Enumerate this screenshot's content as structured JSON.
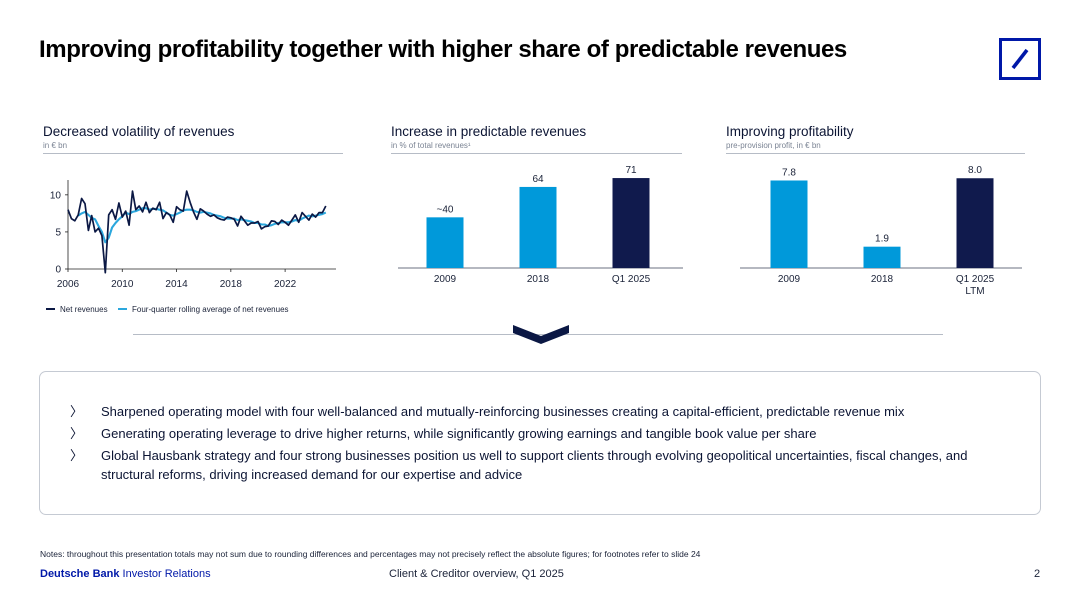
{
  "title": "Improving profitability together with higher share of predictable revenues",
  "colors": {
    "brand": "#0018a8",
    "navy": "#0b1844",
    "light_blue": "#0099da",
    "bar_dark": "#101a4d"
  },
  "panels": {
    "volatility": {
      "title": "Decreased volatility of revenues",
      "subtitle": "in € bn"
    },
    "predictable": {
      "title": "Increase in predictable revenues",
      "subtitle": "in % of total revenues¹"
    },
    "profitability": {
      "title": "Improving profitability",
      "subtitle": "pre-provision profit, in € bn"
    }
  },
  "chart_data": [
    {
      "type": "line",
      "title": "Decreased volatility of revenues",
      "ylabel": "in € bn",
      "ylim": [
        0,
        12
      ],
      "yticks": [
        "0",
        "5",
        "10"
      ],
      "xticks": [
        "2006",
        "2010",
        "2014",
        "2018",
        "2022"
      ],
      "xrange": [
        2006,
        2025.75
      ],
      "series": [
        {
          "name": "Net revenues",
          "color": "#0b1844",
          "x": [
            2006.0,
            2006.25,
            2006.5,
            2006.75,
            2007.0,
            2007.25,
            2007.5,
            2007.75,
            2008.0,
            2008.25,
            2008.5,
            2008.75,
            2009.0,
            2009.25,
            2009.5,
            2009.75,
            2010.0,
            2010.25,
            2010.5,
            2010.75,
            2011.0,
            2011.25,
            2011.5,
            2011.75,
            2012.0,
            2012.25,
            2012.5,
            2012.75,
            2013.0,
            2013.25,
            2013.5,
            2013.75,
            2014.0,
            2014.25,
            2014.5,
            2014.75,
            2015.0,
            2015.25,
            2015.5,
            2015.75,
            2016.0,
            2016.25,
            2016.5,
            2016.75,
            2017.0,
            2017.25,
            2017.5,
            2017.75,
            2018.0,
            2018.25,
            2018.5,
            2018.75,
            2019.0,
            2019.25,
            2019.5,
            2019.75,
            2020.0,
            2020.25,
            2020.5,
            2020.75,
            2021.0,
            2021.25,
            2021.5,
            2021.75,
            2022.0,
            2022.25,
            2022.5,
            2022.75,
            2023.0,
            2023.25,
            2023.5,
            2023.75,
            2024.0,
            2024.25,
            2024.5,
            2024.75,
            2025.0
          ],
          "values": [
            8.0,
            6.8,
            6.5,
            7.3,
            9.5,
            8.8,
            5.2,
            7.2,
            5.0,
            5.5,
            4.5,
            -0.5,
            7.3,
            8.0,
            6.7,
            8.9,
            7.0,
            7.8,
            5.9,
            10.5,
            8.0,
            8.5,
            7.7,
            9.0,
            7.6,
            8.2,
            8.0,
            9.0,
            6.8,
            7.6,
            7.3,
            6.3,
            8.4,
            8.0,
            7.8,
            10.5,
            9.0,
            7.7,
            6.7,
            8.1,
            7.8,
            7.4,
            7.1,
            7.3,
            6.9,
            6.7,
            6.6,
            7.0,
            6.9,
            6.7,
            5.8,
            7.1,
            6.5,
            5.9,
            6.2,
            6.2,
            6.4,
            5.4,
            5.7,
            5.8,
            6.5,
            6.4,
            6.0,
            6.6,
            6.3,
            5.9,
            6.6,
            7.3,
            6.3,
            7.6,
            7.1,
            6.6,
            7.4,
            7.0,
            7.6,
            7.6,
            8.5
          ]
        },
        {
          "name": "Four-quarter rolling average of net revenues",
          "color": "#2ba7dd",
          "x": [
            2006.75,
            2007.0,
            2007.25,
            2007.5,
            2007.75,
            2008.0,
            2008.25,
            2008.5,
            2008.75,
            2009.0,
            2009.25,
            2009.5,
            2009.75,
            2010.0,
            2010.25,
            2010.5,
            2010.75,
            2011.0,
            2011.25,
            2011.5,
            2011.75,
            2012.0,
            2012.25,
            2012.5,
            2012.75,
            2013.0,
            2013.25,
            2013.5,
            2013.75,
            2014.0,
            2014.25,
            2014.5,
            2014.75,
            2015.0,
            2015.25,
            2015.5,
            2015.75,
            2016.0,
            2016.25,
            2016.5,
            2016.75,
            2017.0,
            2017.25,
            2017.5,
            2017.75,
            2018.0,
            2018.25,
            2018.5,
            2018.75,
            2019.0,
            2019.25,
            2019.5,
            2019.75,
            2020.0,
            2020.25,
            2020.5,
            2020.75,
            2021.0,
            2021.25,
            2021.5,
            2021.75,
            2022.0,
            2022.25,
            2022.5,
            2022.75,
            2023.0,
            2023.25,
            2023.5,
            2023.75,
            2024.0,
            2024.25,
            2024.5,
            2024.75,
            2025.0
          ],
          "values": [
            7.2,
            7.5,
            7.7,
            7.3,
            6.9,
            6.7,
            5.8,
            5.0,
            3.6,
            4.2,
            5.6,
            6.2,
            6.7,
            7.1,
            7.6,
            7.4,
            7.7,
            7.8,
            8.0,
            8.2,
            8.2,
            8.0,
            8.1,
            8.1,
            8.0,
            7.9,
            7.6,
            7.3,
            7.2,
            7.4,
            7.6,
            7.9,
            8.0,
            8.0,
            7.9,
            7.7,
            7.6,
            7.7,
            7.6,
            7.5,
            7.3,
            7.2,
            7.1,
            6.9,
            6.8,
            6.8,
            6.8,
            6.6,
            6.7,
            6.6,
            6.5,
            6.4,
            6.2,
            6.2,
            6.0,
            6.0,
            5.8,
            5.9,
            6.1,
            6.2,
            6.3,
            6.3,
            6.3,
            6.4,
            6.6,
            6.5,
            6.8,
            7.0,
            7.2,
            7.1,
            7.2,
            7.3,
            7.4,
            7.6
          ]
        }
      ]
    },
    {
      "type": "bar",
      "title": "Increase in predictable revenues",
      "ylabel": "in % of total revenues¹",
      "ymax": 75,
      "categories": [
        "2009",
        "2018",
        "Q1 2025"
      ],
      "values": [
        40,
        64,
        71
      ],
      "labels": [
        "~40",
        "64",
        "71"
      ],
      "bar_colors": [
        "#0099da",
        "#0099da",
        "#101a4d"
      ]
    },
    {
      "type": "bar",
      "title": "Improving profitability",
      "ylabel": "pre-provision profit, in € bn",
      "ymax": 8.2,
      "categories": [
        "2009",
        "2018",
        "Q1 2025"
      ],
      "category_sublabels": [
        "",
        "",
        "LTM"
      ],
      "values": [
        7.8,
        1.9,
        8.0
      ],
      "labels": [
        "7.8",
        "1.9",
        "8.0"
      ],
      "bar_colors": [
        "#0099da",
        "#0099da",
        "#101a4d"
      ]
    }
  ],
  "bullets": [
    "Sharpened operating model with four well-balanced and mutually-reinforcing businesses creating a capital-efficient, predictable revenue mix",
    "Generating operating leverage to drive higher returns, while significantly growing earnings and tangible book value per share",
    "Global Hausbank strategy and four strong businesses position us well to support clients through evolving geopolitical uncertainties, fiscal changes, and structural reforms, driving increased demand for our expertise and advice"
  ],
  "bullet_marker": "〉",
  "notes": "Notes: throughout this presentation totals may not sum due to rounding differences and percentages may not precisely reflect the absolute figures; for footnotes refer to slide 24",
  "footer": {
    "brand": "Deutsche Bank",
    "section": "Investor Relations",
    "center": "Client & Creditor overview, Q1 2025",
    "page": "2"
  }
}
